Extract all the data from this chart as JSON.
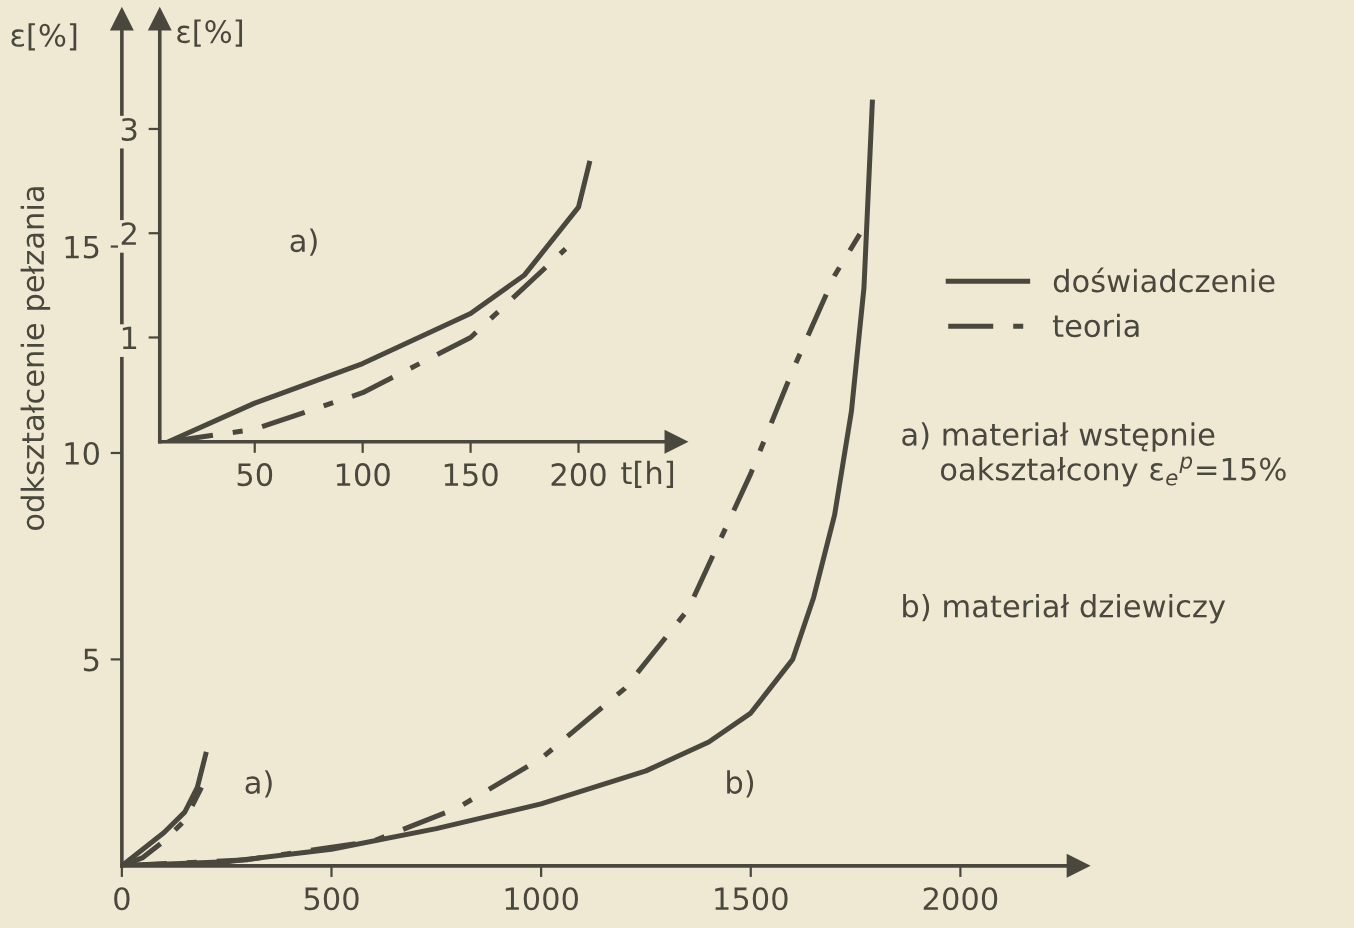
{
  "chart_data": [
    {
      "type": "line",
      "ylabel": "odkształcenie pełzania",
      "xlim": [
        0,
        2280
      ],
      "ylim": [
        0,
        20.5
      ],
      "xticks": [
        0,
        500,
        1000,
        1500,
        2000
      ],
      "yticks": [
        5,
        10,
        15
      ],
      "grid": false,
      "legend": "right",
      "marker": "none",
      "series": [
        {
          "color": "#4a483e",
          "line_style": "solid",
          "x": [
            0,
            50,
            100,
            150,
            180,
            200
          ],
          "values": [
            0,
            0.4,
            0.8,
            1.3,
            1.9,
            2.7
          ]
        },
        {
          "color": "#4a483e",
          "line_style": "dashed",
          "x": [
            0,
            50,
            100,
            150,
            190
          ],
          "values": [
            0,
            0.2,
            0.6,
            1.1,
            1.9
          ]
        },
        {
          "name": "doświadczenie",
          "color": "#4a483e",
          "line_style": "solid",
          "x": [
            0,
            250,
            500,
            750,
            1000,
            1250,
            1400,
            1500,
            1600,
            1650,
            1700,
            1740,
            1770,
            1790
          ],
          "values": [
            0,
            0.1,
            0.4,
            0.9,
            1.5,
            2.3,
            3,
            3.7,
            5,
            6.5,
            8.5,
            11,
            14,
            18.5
          ]
        },
        {
          "name": "teoria",
          "color": "#4a483e",
          "line_style": "dashed",
          "x": [
            0,
            300,
            600,
            800,
            1000,
            1200,
            1350,
            1500,
            1600,
            1700,
            1760
          ],
          "values": [
            0,
            0.15,
            0.6,
            1.4,
            2.6,
            4.3,
            6.2,
            9.5,
            12,
            14.3,
            15.3
          ]
        }
      ],
      "annotations": [
        "ε[%]",
        "a)",
        "b)",
        "a) materiał wstępnie\n    oakształcony ε$_{e}$$^{p}$=15%",
        "b) materiał dziewiczy"
      ]
    },
    {
      "type": "line",
      "ylabel": "ε[%]",
      "xlabel": "t[h]",
      "xlim": [
        6,
        245
      ],
      "ylim": [
        0,
        4.05
      ],
      "xticks": [
        50,
        100,
        150,
        200
      ],
      "yticks": [
        1,
        2,
        3
      ],
      "grid": false,
      "marker": "none",
      "series": [
        {
          "color": "#4a483e",
          "line_style": "solid",
          "x": [
            10,
            50,
            100,
            150,
            175,
            200,
            205
          ],
          "values": [
            0,
            0.37,
            0.75,
            1.23,
            1.6,
            2.25,
            2.67
          ]
        },
        {
          "color": "#4a483e",
          "line_style": "dashed",
          "x": [
            10,
            50,
            100,
            150,
            194
          ],
          "values": [
            0,
            0.12,
            0.47,
            1.0,
            1.85
          ]
        }
      ],
      "annotations": [
        "a)"
      ]
    }
  ]
}
